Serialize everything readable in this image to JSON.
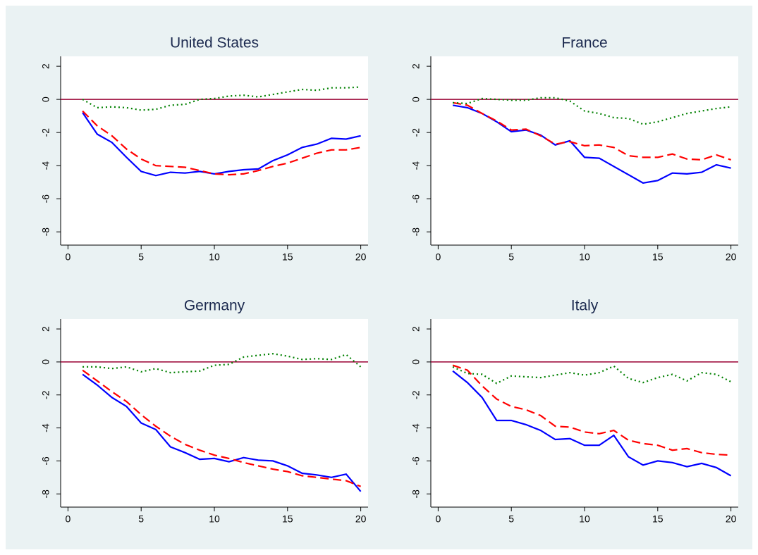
{
  "chart_data": [
    {
      "type": "line",
      "title": "United States",
      "x": [
        1,
        2,
        3,
        4,
        5,
        6,
        7,
        8,
        9,
        10,
        11,
        12,
        13,
        14,
        15,
        16,
        17,
        18,
        19,
        20
      ],
      "series": [
        {
          "color": "#0000ff",
          "dash": "solid",
          "values": [
            -0.8,
            -2.1,
            -2.6,
            -3.5,
            -4.35,
            -4.6,
            -4.4,
            -4.45,
            -4.35,
            -4.5,
            -4.35,
            -4.25,
            -4.2,
            -3.7,
            -3.35,
            -2.9,
            -2.7,
            -2.35,
            -2.4,
            -2.2
          ]
        },
        {
          "color": "#ff0000",
          "dash": "dashed",
          "values": [
            -0.7,
            -1.6,
            -2.2,
            -3.0,
            -3.6,
            -4.0,
            -4.05,
            -4.1,
            -4.3,
            -4.5,
            -4.55,
            -4.5,
            -4.3,
            -4.05,
            -3.85,
            -3.55,
            -3.25,
            -3.05,
            -3.05,
            -2.9
          ]
        },
        {
          "color": "#008000",
          "dash": "dotted",
          "values": [
            0.0,
            -0.5,
            -0.45,
            -0.5,
            -0.65,
            -0.6,
            -0.35,
            -0.3,
            0.0,
            0.05,
            0.2,
            0.25,
            0.15,
            0.3,
            0.45,
            0.6,
            0.55,
            0.7,
            0.7,
            0.75
          ]
        }
      ],
      "reference_line": {
        "value": 0,
        "color": "#990033"
      },
      "xlim": [
        -0.5,
        20.5
      ],
      "xticks": [
        0,
        5,
        10,
        15,
        20
      ],
      "ylim": [
        -8.8,
        2.6
      ],
      "yticks": [
        -8,
        -6,
        -4,
        -2,
        0,
        2
      ],
      "grid": false
    },
    {
      "type": "line",
      "title": "France",
      "x": [
        1,
        2,
        3,
        4,
        5,
        6,
        7,
        8,
        9,
        10,
        11,
        12,
        13,
        14,
        15,
        16,
        17,
        18,
        19,
        20
      ],
      "series": [
        {
          "color": "#0000ff",
          "dash": "solid",
          "values": [
            -0.35,
            -0.5,
            -0.85,
            -1.35,
            -1.95,
            -1.85,
            -2.15,
            -2.75,
            -2.5,
            -3.5,
            -3.55,
            -4.05,
            -4.55,
            -5.05,
            -4.9,
            -4.45,
            -4.5,
            -4.4,
            -3.95,
            -4.15
          ]
        },
        {
          "color": "#ff0000",
          "dash": "dashed",
          "values": [
            -0.2,
            -0.35,
            -0.85,
            -1.3,
            -1.85,
            -1.8,
            -2.2,
            -2.7,
            -2.55,
            -2.8,
            -2.75,
            -2.9,
            -3.4,
            -3.5,
            -3.5,
            -3.3,
            -3.6,
            -3.65,
            -3.35,
            -3.65
          ]
        },
        {
          "color": "#008000",
          "dash": "dotted",
          "values": [
            -0.2,
            -0.25,
            0.05,
            0.0,
            -0.05,
            -0.05,
            0.1,
            0.1,
            -0.1,
            -0.7,
            -0.85,
            -1.1,
            -1.15,
            -1.5,
            -1.35,
            -1.1,
            -0.85,
            -0.7,
            -0.55,
            -0.45
          ]
        }
      ],
      "reference_line": {
        "value": 0,
        "color": "#990033"
      },
      "xlim": [
        -0.5,
        20.5
      ],
      "xticks": [
        0,
        5,
        10,
        15,
        20
      ],
      "ylim": [
        -8.8,
        2.6
      ],
      "yticks": [
        -8,
        -6,
        -4,
        -2,
        0,
        2
      ],
      "grid": false
    },
    {
      "type": "line",
      "title": "Germany",
      "x": [
        1,
        2,
        3,
        4,
        5,
        6,
        7,
        8,
        9,
        10,
        11,
        12,
        13,
        14,
        15,
        16,
        17,
        18,
        19,
        20
      ],
      "series": [
        {
          "color": "#0000ff",
          "dash": "solid",
          "values": [
            -0.75,
            -1.4,
            -2.15,
            -2.7,
            -3.7,
            -4.1,
            -5.15,
            -5.5,
            -5.9,
            -5.85,
            -6.05,
            -5.8,
            -5.95,
            -6.0,
            -6.3,
            -6.75,
            -6.85,
            -7.0,
            -6.8,
            -7.85
          ]
        },
        {
          "color": "#ff0000",
          "dash": "dashed",
          "values": [
            -0.5,
            -1.15,
            -1.8,
            -2.4,
            -3.2,
            -3.9,
            -4.5,
            -5.0,
            -5.35,
            -5.65,
            -5.85,
            -6.1,
            -6.3,
            -6.5,
            -6.65,
            -6.9,
            -7.0,
            -7.1,
            -7.2,
            -7.55
          ]
        },
        {
          "color": "#008000",
          "dash": "dotted",
          "values": [
            -0.3,
            -0.3,
            -0.4,
            -0.3,
            -0.6,
            -0.4,
            -0.65,
            -0.6,
            -0.55,
            -0.2,
            -0.15,
            0.3,
            0.4,
            0.5,
            0.35,
            0.15,
            0.2,
            0.15,
            0.45,
            -0.3
          ]
        }
      ],
      "reference_line": {
        "value": 0,
        "color": "#990033"
      },
      "xlim": [
        -0.5,
        20.5
      ],
      "xticks": [
        0,
        5,
        10,
        15,
        20
      ],
      "ylim": [
        -8.8,
        2.6
      ],
      "yticks": [
        -8,
        -6,
        -4,
        -2,
        0,
        2
      ],
      "grid": false
    },
    {
      "type": "line",
      "title": "Italy",
      "x": [
        1,
        2,
        3,
        4,
        5,
        6,
        7,
        8,
        9,
        10,
        11,
        12,
        13,
        14,
        15,
        16,
        17,
        18,
        19,
        20
      ],
      "series": [
        {
          "color": "#0000ff",
          "dash": "solid",
          "values": [
            -0.55,
            -1.25,
            -2.15,
            -3.55,
            -3.55,
            -3.8,
            -4.15,
            -4.7,
            -4.65,
            -5.05,
            -5.05,
            -4.45,
            -5.75,
            -6.25,
            -6.0,
            -6.1,
            -6.35,
            -6.15,
            -6.4,
            -6.9
          ]
        },
        {
          "color": "#ff0000",
          "dash": "dashed",
          "values": [
            -0.2,
            -0.5,
            -1.45,
            -2.25,
            -2.7,
            -2.9,
            -3.25,
            -3.9,
            -3.95,
            -4.25,
            -4.35,
            -4.15,
            -4.75,
            -4.95,
            -5.05,
            -5.35,
            -5.25,
            -5.5,
            -5.6,
            -5.65
          ]
        },
        {
          "color": "#008000",
          "dash": "dotted",
          "values": [
            -0.3,
            -0.7,
            -0.75,
            -1.3,
            -0.85,
            -0.9,
            -0.95,
            -0.8,
            -0.65,
            -0.8,
            -0.65,
            -0.25,
            -1.0,
            -1.25,
            -0.95,
            -0.75,
            -1.15,
            -0.65,
            -0.75,
            -1.2
          ]
        }
      ],
      "reference_line": {
        "value": 0,
        "color": "#990033"
      },
      "xlim": [
        -0.5,
        20.5
      ],
      "xticks": [
        0,
        5,
        10,
        15,
        20
      ],
      "ylim": [
        -8.8,
        2.6
      ],
      "yticks": [
        -8,
        -6,
        -4,
        -2,
        0,
        2
      ],
      "grid": false
    }
  ]
}
